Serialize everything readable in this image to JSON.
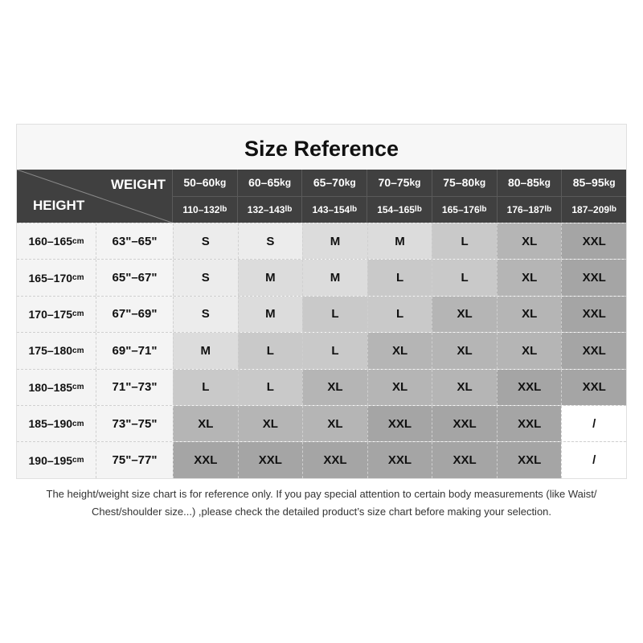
{
  "title": "Size Reference",
  "header": {
    "weight_label": "WEIGHT",
    "height_label": "HEIGHT",
    "weights": [
      {
        "kg": "50–60",
        "lb": "110–132"
      },
      {
        "kg": "60–65",
        "lb": "132–143"
      },
      {
        "kg": "65–70",
        "lb": "143–154"
      },
      {
        "kg": "70–75",
        "lb": "154–165"
      },
      {
        "kg": "75–80",
        "lb": "165–176"
      },
      {
        "kg": "80–85",
        "lb": "176–187"
      },
      {
        "kg": "85–95",
        "lb": "187–209"
      }
    ],
    "kg_unit": "kg",
    "lb_unit": "lb",
    "cm_unit": "cm"
  },
  "rows": [
    {
      "cm": "160–165",
      "in": "63\"–65\"",
      "sizes": [
        "S",
        "S",
        "M",
        "M",
        "L",
        "XL",
        "XXL"
      ]
    },
    {
      "cm": "165–170",
      "in": "65\"–67\"",
      "sizes": [
        "S",
        "M",
        "M",
        "L",
        "L",
        "XL",
        "XXL"
      ]
    },
    {
      "cm": "170–175",
      "in": "67\"–69\"",
      "sizes": [
        "S",
        "M",
        "L",
        "L",
        "XL",
        "XL",
        "XXL"
      ]
    },
    {
      "cm": "175–180",
      "in": "69\"–71\"",
      "sizes": [
        "M",
        "L",
        "L",
        "XL",
        "XL",
        "XL",
        "XXL"
      ]
    },
    {
      "cm": "180–185",
      "in": "71\"–73\"",
      "sizes": [
        "L",
        "L",
        "XL",
        "XL",
        "XL",
        "XXL",
        "XXL"
      ]
    },
    {
      "cm": "185–190",
      "in": "73\"–75\"",
      "sizes": [
        "XL",
        "XL",
        "XL",
        "XXL",
        "XXL",
        "XXL",
        "/"
      ]
    },
    {
      "cm": "190–195",
      "in": "75\"–77\"",
      "sizes": [
        "XXL",
        "XXL",
        "XXL",
        "XXL",
        "XXL",
        "XXL",
        "/"
      ]
    }
  ],
  "size_colors": {
    "S": "#ececec",
    "M": "#dcdcdc",
    "L": "#c9c9c9",
    "XL": "#b5b5b5",
    "XXL": "#a5a5a5",
    "/": "#ffffff"
  },
  "note_line1": "The height/weight size chart is for reference only. If you pay special attention to certain body measurements  (like Waist/",
  "note_line2": "Chest/shoulder size...)  ,please check the detailed product’s size chart before making your selection."
}
